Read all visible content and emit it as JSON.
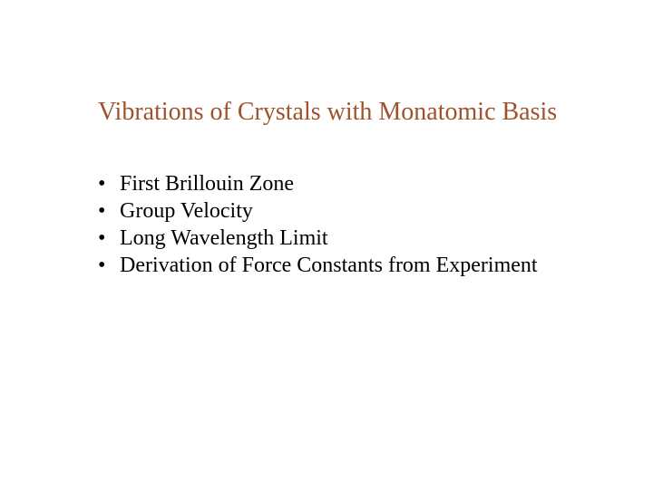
{
  "title": {
    "text": "Vibrations of Crystals with Monatomic Basis",
    "color": "#a0522d",
    "fontsize": 28
  },
  "bullets": {
    "items": [
      "First Brillouin Zone",
      "Group Velocity",
      "Long Wavelength Limit",
      "Derivation of Force Constants from Experiment"
    ],
    "marker": "•",
    "color": "#000000",
    "fontsize": 24
  },
  "background_color": "#ffffff"
}
